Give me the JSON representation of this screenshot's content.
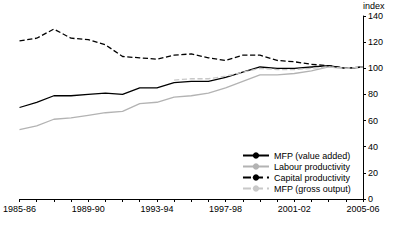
{
  "chart_data": {
    "type": "line",
    "categories": [
      "1985-86",
      null,
      null,
      null,
      "1989-90",
      null,
      null,
      null,
      "1993-94",
      null,
      null,
      null,
      "1997-98",
      null,
      null,
      null,
      "2001-02",
      null,
      null,
      null,
      "2005-06"
    ],
    "y_label": "index",
    "ylim": [
      0,
      140
    ],
    "yticks": [
      0,
      20,
      40,
      60,
      80,
      100,
      120,
      140
    ],
    "grid": false,
    "legend": "lower right",
    "series": [
      {
        "name": "MFP (value added)",
        "color": "#000000",
        "line_style": "solid",
        "values": [
          70,
          74,
          79,
          79,
          80,
          81,
          80,
          85,
          85,
          89,
          90,
          90,
          93,
          97,
          101,
          100,
          100,
          101,
          102,
          100,
          101
        ]
      },
      {
        "name": "Labour productivity",
        "color": "#b3b3b3",
        "line_style": "solid",
        "values": [
          53,
          56,
          61,
          62,
          64,
          66,
          67,
          73,
          74,
          78,
          79,
          81,
          85,
          90,
          95,
          95,
          96,
          98,
          101,
          100,
          101
        ]
      },
      {
        "name": "Capital productivity",
        "color": "#000000",
        "line_style": "dashed",
        "values": [
          121,
          123,
          130,
          123,
          122,
          118,
          109,
          108,
          107,
          110,
          111,
          108,
          106,
          110,
          110,
          106,
          105,
          103,
          102,
          100,
          101
        ]
      },
      {
        "name": "MFP (gross output)",
        "color": "#c8c8c8",
        "line_style": "dashed",
        "values": [
          null,
          null,
          null,
          null,
          null,
          null,
          null,
          null,
          null,
          91,
          92,
          92,
          94,
          97,
          100,
          99,
          99,
          100,
          101,
          100,
          101
        ]
      }
    ]
  }
}
